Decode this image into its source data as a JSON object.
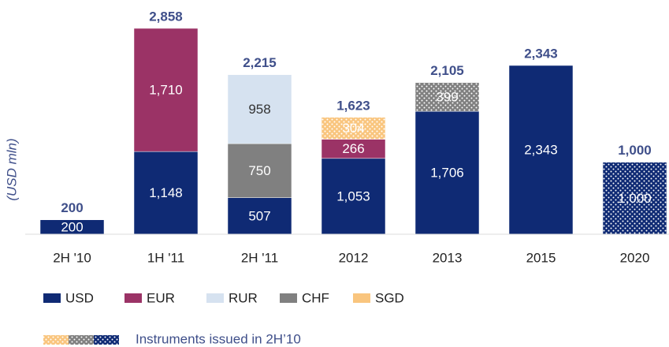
{
  "chart_data": {
    "type": "stacked_bar",
    "y_label": "(USD mln)",
    "categories": [
      "2H '10",
      "1H '11",
      "2H '11",
      "2012",
      "2013",
      "2015",
      "2020"
    ],
    "series": [
      {
        "name": "USD",
        "color": "#0f2a74",
        "values": [
          200,
          1148,
          507,
          1053,
          1706,
          2343,
          1000
        ],
        "value_labels": [
          "200",
          "1,148",
          "507",
          "1,053",
          "1,706",
          "2,343",
          "1,000"
        ],
        "hatched": [
          false,
          false,
          false,
          false,
          false,
          false,
          true
        ]
      },
      {
        "name": "EUR",
        "color": "#9b3366",
        "values": [
          null,
          1710,
          null,
          266,
          null,
          null,
          null
        ],
        "value_labels": [
          null,
          "1,710",
          null,
          "266",
          null,
          null,
          null
        ],
        "hatched": [
          false,
          false,
          false,
          false,
          false,
          false,
          false
        ]
      },
      {
        "name": "CHF",
        "color": "#808080",
        "values": [
          null,
          null,
          750,
          null,
          399,
          null,
          null
        ],
        "value_labels": [
          null,
          null,
          "750",
          null,
          "399",
          null,
          null
        ],
        "hatched": [
          false,
          false,
          false,
          false,
          true,
          false,
          false
        ]
      },
      {
        "name": "RUR",
        "color": "#d6e2f0",
        "values": [
          null,
          null,
          958,
          null,
          null,
          null,
          null
        ],
        "value_labels": [
          null,
          null,
          "958",
          null,
          null,
          null,
          null
        ],
        "hatched": [
          false,
          false,
          false,
          false,
          false,
          false,
          false
        ]
      },
      {
        "name": "SGD",
        "color": "#f9c57e",
        "values": [
          null,
          null,
          null,
          304,
          null,
          null,
          null
        ],
        "value_labels": [
          null,
          null,
          null,
          "304",
          null,
          null,
          null
        ],
        "hatched": [
          false,
          false,
          false,
          true,
          false,
          false,
          false
        ]
      }
    ],
    "totals": [
      200,
      2858,
      2215,
      1623,
      2105,
      2343,
      1000
    ],
    "total_labels": [
      "200",
      "2,858",
      "2,215",
      "1,623",
      "2,105",
      "2,343",
      "1,000"
    ],
    "legend_order": [
      0,
      1,
      3,
      2,
      4
    ],
    "pattern_legend": "Instruments issued in 2H’10",
    "ylim": [
      0,
      3000
    ]
  }
}
